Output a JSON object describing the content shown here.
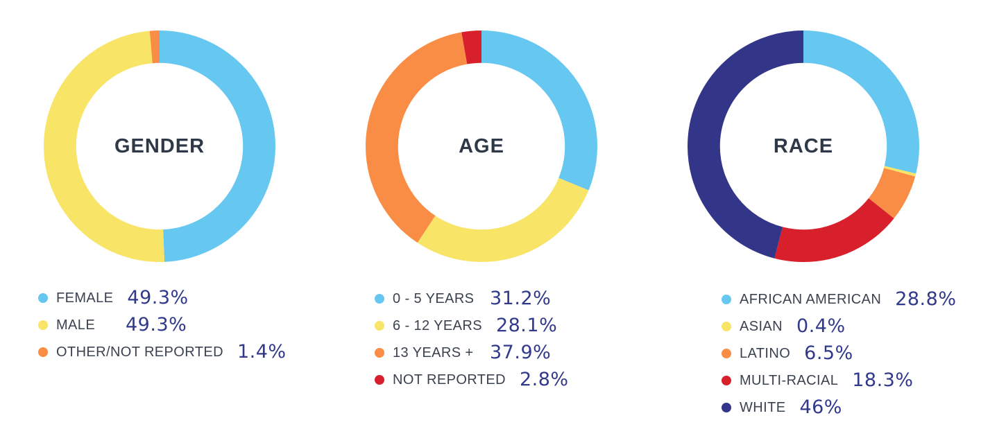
{
  "colors": {
    "background": "#ffffff",
    "title_text": "#2F3847",
    "label_text": "#3A414F",
    "value_text": "#31398B"
  },
  "chart_data": [
    {
      "type": "pie",
      "donut": true,
      "title": "GENDER",
      "legend_position": "below",
      "segments": [
        {
          "label": "FEMALE",
          "value": 49.3,
          "value_label": "49.3%",
          "color": "#66C7F0"
        },
        {
          "label": "MALE",
          "value": 49.3,
          "value_label": "49.3%",
          "color": "#F8E467"
        },
        {
          "label": "OTHER/NOT REPORTED",
          "value": 1.4,
          "value_label": "1.4%",
          "color": "#FA8D45"
        }
      ]
    },
    {
      "type": "pie",
      "donut": true,
      "title": "AGE",
      "legend_position": "below",
      "segments": [
        {
          "label": "0 - 5 YEARS",
          "value": 31.2,
          "value_label": "31.2%",
          "color": "#66C7F0"
        },
        {
          "label": "6 - 12 YEARS",
          "value": 28.1,
          "value_label": "28.1%",
          "color": "#F8E467"
        },
        {
          "label": "13 YEARS +",
          "value": 37.9,
          "value_label": "37.9%",
          "color": "#FA8D45"
        },
        {
          "label": "NOT REPORTED",
          "value": 2.8,
          "value_label": "2.8%",
          "color": "#D7202C"
        }
      ]
    },
    {
      "type": "pie",
      "donut": true,
      "title": "RACE",
      "legend_position": "below",
      "segments": [
        {
          "label": "AFRICAN AMERICAN",
          "value": 28.8,
          "value_label": "28.8%",
          "color": "#66C7F0"
        },
        {
          "label": "ASIAN",
          "value": 0.4,
          "value_label": "0.4%",
          "color": "#F8E467"
        },
        {
          "label": "LATINO",
          "value": 6.5,
          "value_label": "6.5%",
          "color": "#FA8D45"
        },
        {
          "label": "MULTI-RACIAL",
          "value": 18.3,
          "value_label": "18.3%",
          "color": "#D7202C"
        },
        {
          "label": "WHITE",
          "value": 46,
          "value_label": "46%",
          "color": "#333588"
        }
      ]
    }
  ]
}
